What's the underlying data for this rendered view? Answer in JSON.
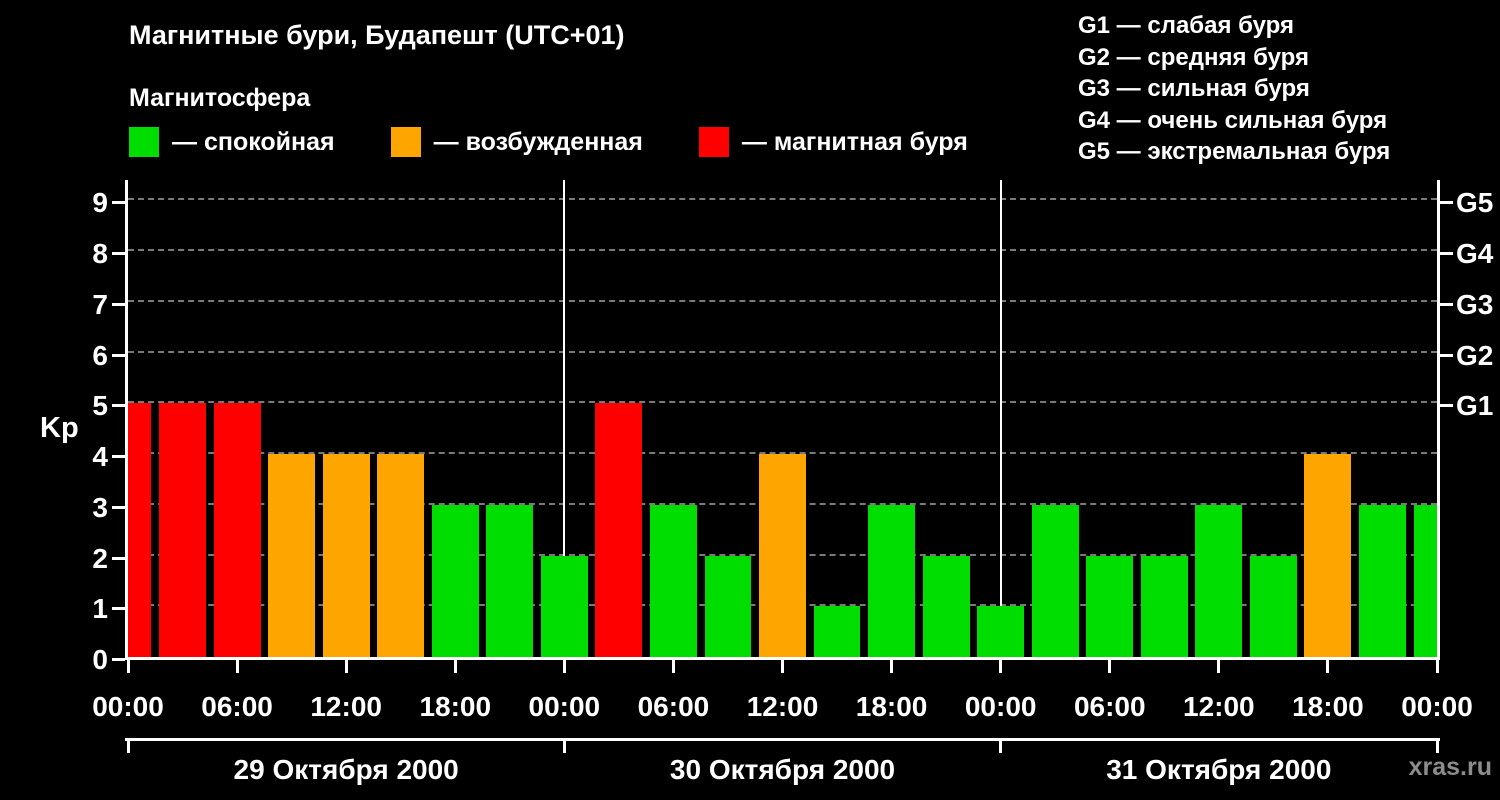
{
  "header": {
    "title": "Магнитные бури, Будапешт (UTC+01)",
    "subtitle": "Магнитосфера",
    "legend": [
      {
        "color": "#00dd00",
        "label": "— спокойная",
        "state": "quiet"
      },
      {
        "color": "#ffa500",
        "label": "— возбужденная",
        "state": "excited"
      },
      {
        "color": "#ff0000",
        "label": "— магнитная буря",
        "state": "storm"
      }
    ],
    "g_legend": [
      "G1 — слабая буря",
      "G2 — средняя буря",
      "G3 — сильная буря",
      "G4 — очень сильная буря",
      "G5 — экстремальная буря"
    ]
  },
  "watermark": "xras.ru",
  "chart_data": {
    "type": "bar",
    "title": "Магнитные бури, Будапешт (UTC+01)",
    "xlabel": "",
    "ylabel": "Kp",
    "ylim": [
      0,
      9
    ],
    "grid": "dashed-horizontal",
    "y_ticks": [
      0,
      1,
      2,
      3,
      4,
      5,
      6,
      7,
      8,
      9
    ],
    "right_axis_labels": [
      {
        "label": "G1",
        "kp": 5
      },
      {
        "label": "G2",
        "kp": 6
      },
      {
        "label": "G3",
        "kp": 7
      },
      {
        "label": "G4",
        "kp": 8
      },
      {
        "label": "G5",
        "kp": 9
      }
    ],
    "x_tick_labels": [
      "00:00",
      "06:00",
      "12:00",
      "18:00",
      "00:00",
      "06:00",
      "12:00",
      "18:00",
      "00:00",
      "06:00",
      "12:00",
      "18:00",
      "00:00"
    ],
    "days": [
      "29 Октября 2000",
      "30 Октября 2000",
      "31 Октября 2000"
    ],
    "colors": {
      "quiet": "#00dd00",
      "excited": "#ffa500",
      "storm": "#ff0000"
    },
    "points": [
      {
        "time": "29.10 00:00",
        "kp": 5,
        "state": "storm"
      },
      {
        "time": "29.10 03:00",
        "kp": 5,
        "state": "storm"
      },
      {
        "time": "29.10 06:00",
        "kp": 5,
        "state": "storm"
      },
      {
        "time": "29.10 09:00",
        "kp": 4,
        "state": "excited"
      },
      {
        "time": "29.10 12:00",
        "kp": 4,
        "state": "excited"
      },
      {
        "time": "29.10 15:00",
        "kp": 4,
        "state": "excited"
      },
      {
        "time": "29.10 18:00",
        "kp": 3,
        "state": "quiet"
      },
      {
        "time": "29.10 21:00",
        "kp": 3,
        "state": "quiet"
      },
      {
        "time": "30.10 00:00",
        "kp": 2,
        "state": "quiet"
      },
      {
        "time": "30.10 03:00",
        "kp": 5,
        "state": "storm"
      },
      {
        "time": "30.10 06:00",
        "kp": 3,
        "state": "quiet"
      },
      {
        "time": "30.10 09:00",
        "kp": 2,
        "state": "quiet"
      },
      {
        "time": "30.10 12:00",
        "kp": 4,
        "state": "excited"
      },
      {
        "time": "30.10 15:00",
        "kp": 1,
        "state": "quiet"
      },
      {
        "time": "30.10 18:00",
        "kp": 3,
        "state": "quiet"
      },
      {
        "time": "30.10 21:00",
        "kp": 2,
        "state": "quiet"
      },
      {
        "time": "31.10 00:00",
        "kp": 1,
        "state": "quiet"
      },
      {
        "time": "31.10 03:00",
        "kp": 3,
        "state": "quiet"
      },
      {
        "time": "31.10 06:00",
        "kp": 2,
        "state": "quiet"
      },
      {
        "time": "31.10 09:00",
        "kp": 2,
        "state": "quiet"
      },
      {
        "time": "31.10 12:00",
        "kp": 3,
        "state": "quiet"
      },
      {
        "time": "31.10 15:00",
        "kp": 2,
        "state": "quiet"
      },
      {
        "time": "31.10 18:00",
        "kp": 4,
        "state": "excited"
      },
      {
        "time": "31.10 21:00",
        "kp": 3,
        "state": "quiet"
      },
      {
        "time": "01.11 00:00",
        "kp": 3,
        "state": "quiet"
      }
    ]
  }
}
